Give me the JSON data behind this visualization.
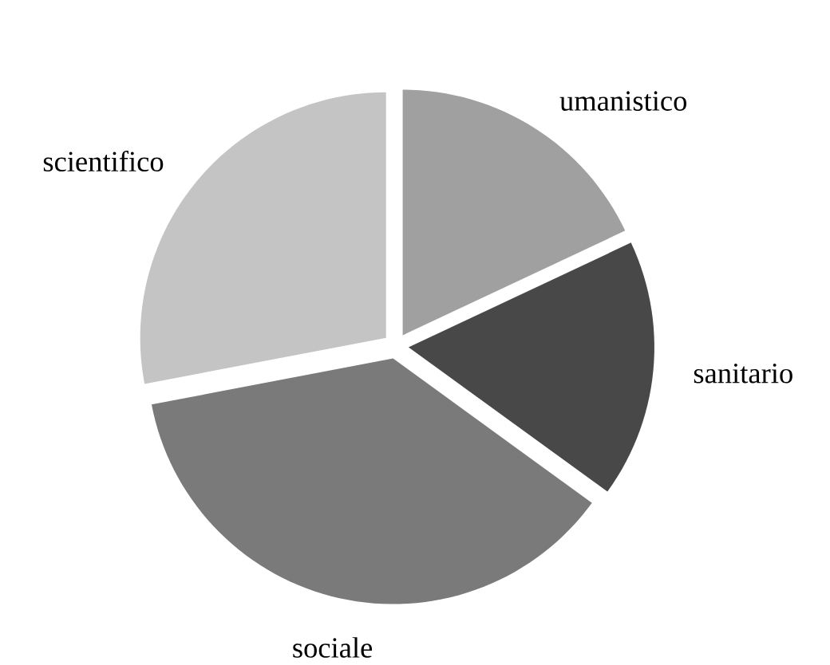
{
  "chart_data": {
    "type": "pie",
    "categories": [
      "umanistico",
      "sanitario",
      "sociale",
      "scientifico"
    ],
    "values": [
      18,
      17,
      37,
      28
    ],
    "colors": [
      "#a0a0a0",
      "#484848",
      "#7a7a7a",
      "#c4c4c4"
    ]
  }
}
